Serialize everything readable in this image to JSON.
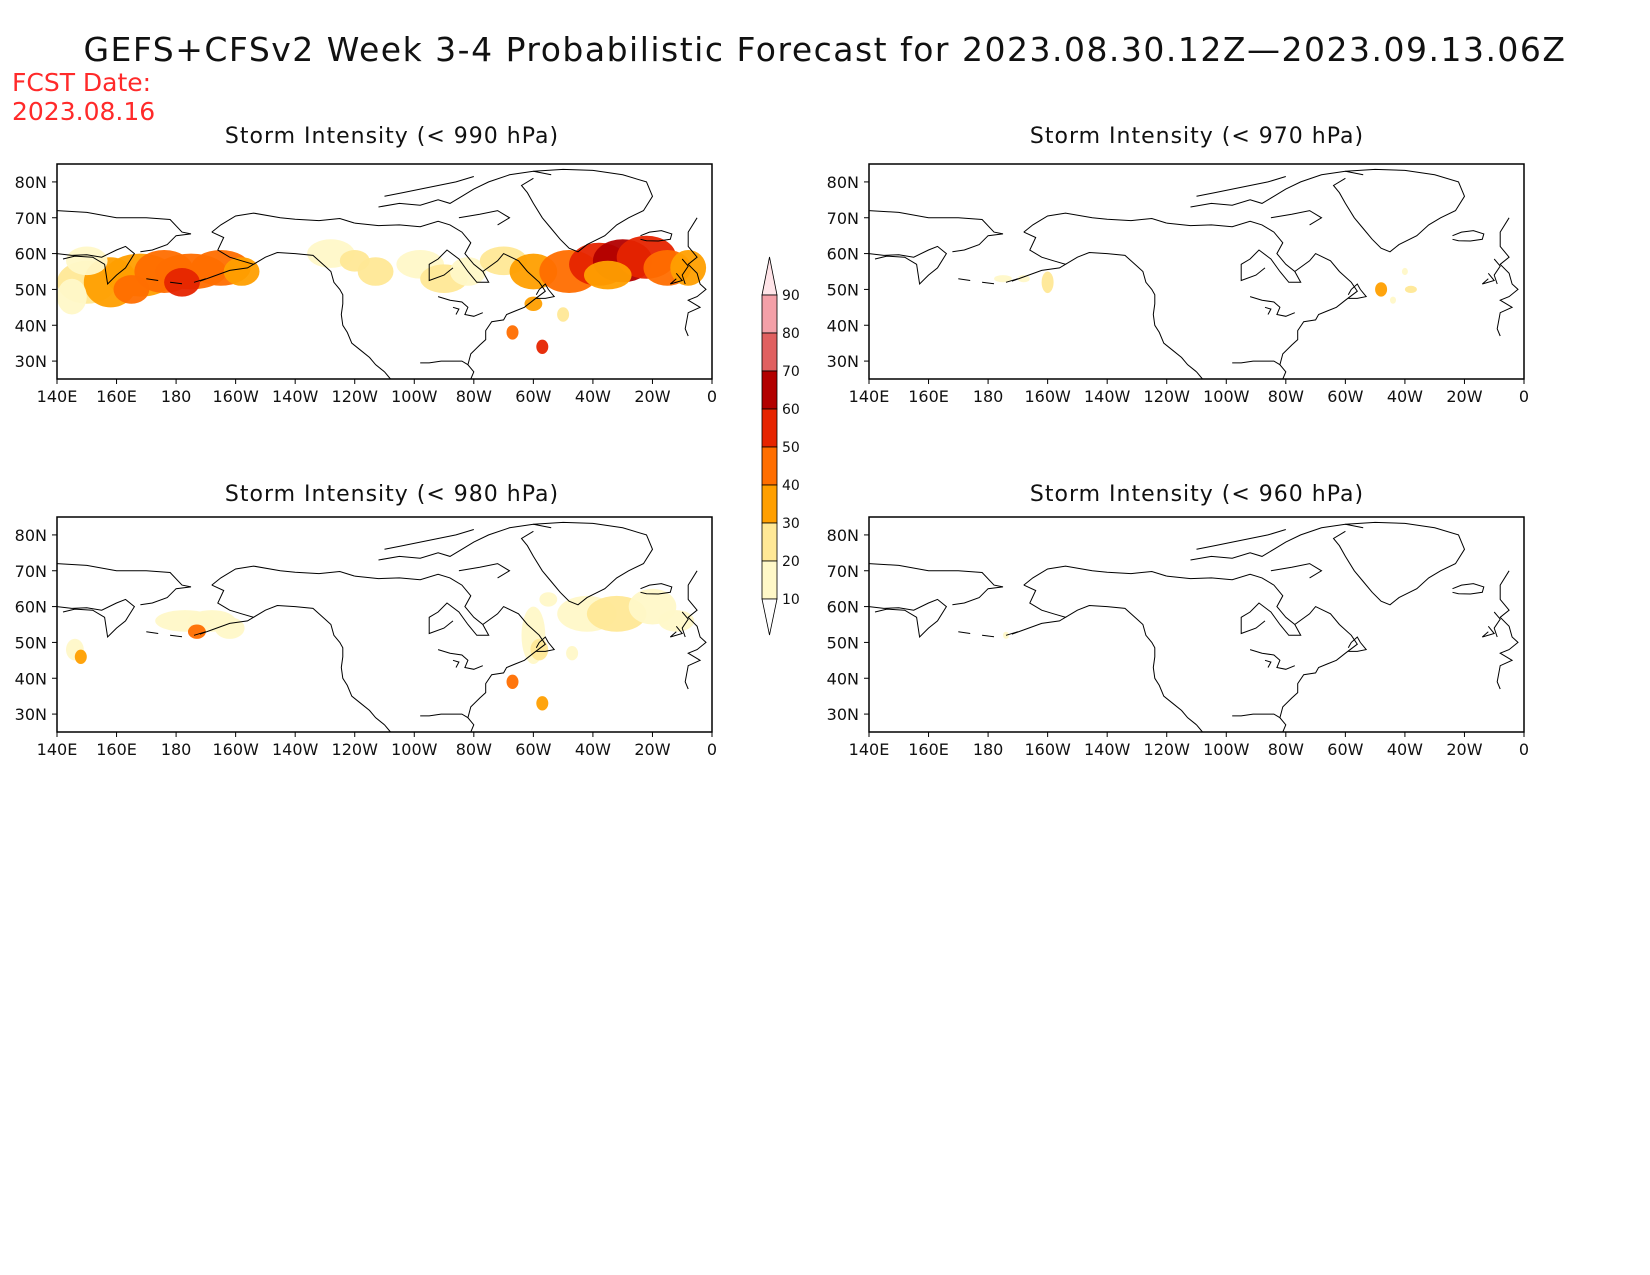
{
  "title": "GEFS+CFSv2 Week 3-4 Probabilistic Forecast for 2023.08.30.12Z—2023.09.13.06Z",
  "fcst_label": "FCST Date:",
  "fcst_date": "2023.08.16",
  "lon_ticks": [
    "140E",
    "160E",
    "180",
    "160W",
    "140W",
    "120W",
    "100W",
    "80W",
    "60W",
    "40W",
    "20W",
    "0"
  ],
  "lat_ticks": [
    "80N",
    "70N",
    "60N",
    "50N",
    "40N",
    "30N"
  ],
  "colorbar": {
    "levels": [
      "10",
      "20",
      "30",
      "40",
      "50",
      "60",
      "70",
      "80",
      "90"
    ],
    "colors": [
      "#fff8c8",
      "#ffe896",
      "#ff9f00",
      "#ff6e00",
      "#e62400",
      "#b20000",
      "#e06060",
      "#f4a0a8",
      "#ffe4e8"
    ]
  },
  "panels": [
    {
      "id": "p990",
      "title": "Storm Intensity (< 990 hPa)",
      "intensity": "high"
    },
    {
      "id": "p970",
      "title": "Storm Intensity (< 970 hPa)",
      "intensity": "low"
    },
    {
      "id": "p980",
      "title": "Storm Intensity (< 980 hPa)",
      "intensity": "medium"
    },
    {
      "id": "p960",
      "title": "Storm Intensity (< 960 hPa)",
      "intensity": "minimal"
    }
  ]
}
